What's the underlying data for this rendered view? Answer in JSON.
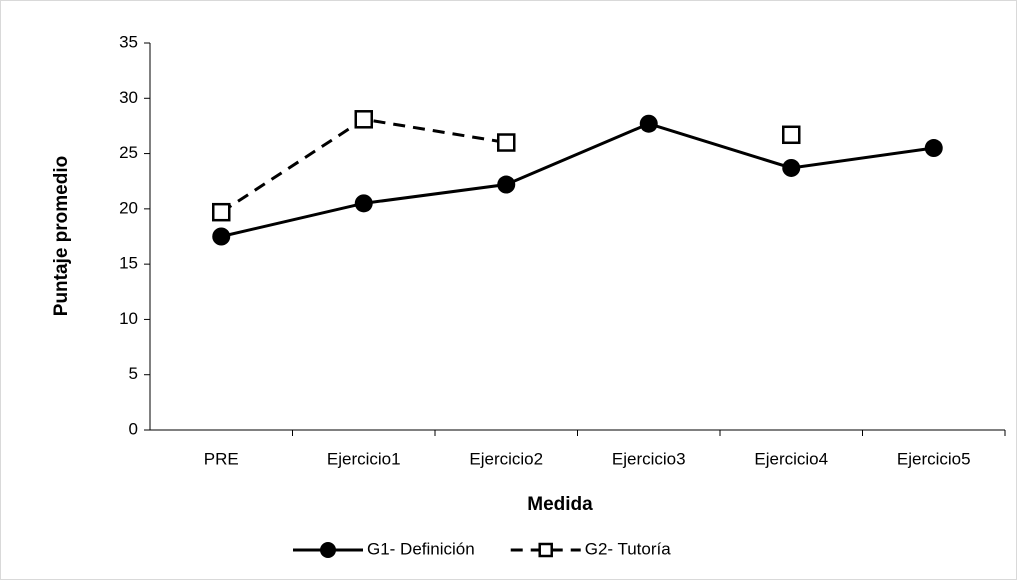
{
  "chart_data": {
    "type": "line",
    "x_label": "Medida",
    "y_label": "Puntaje promedio",
    "categories": [
      "PRE",
      "Ejercicio1",
      "Ejercicio2",
      "Ejercicio3",
      "Ejercicio4",
      "Ejercicio5"
    ],
    "series": [
      {
        "name": "G1- Definición",
        "color": "#000000",
        "marker": "circle",
        "dash": false,
        "values": [
          17.5,
          20.5,
          22.2,
          27.7,
          23.7,
          25.5
        ]
      },
      {
        "name": "G2- Tutoría",
        "color": "#000000",
        "marker": "square",
        "dash": true,
        "values": [
          19.7,
          28.1,
          26.0,
          null,
          26.7,
          null
        ]
      }
    ],
    "ylim": [
      0,
      35
    ],
    "yticks": [
      0,
      5,
      10,
      15,
      20,
      25,
      30,
      35
    ],
    "legend": "bottom"
  }
}
